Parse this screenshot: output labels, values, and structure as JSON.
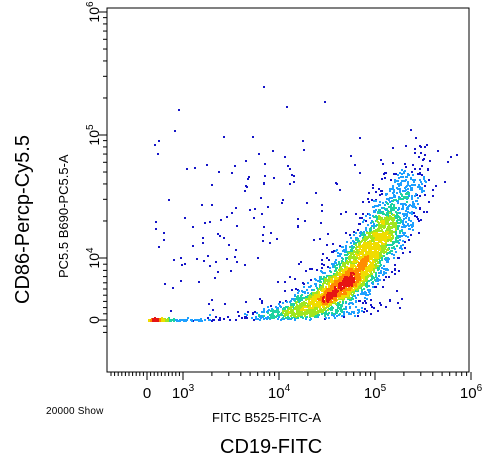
{
  "chart_data": {
    "type": "scatter",
    "style": "density-dot-plot",
    "xlabel": "FITC B525-FITC-A",
    "ylabel": "PC5.5 B690-PC5.5-A",
    "outer_xlabel": "CD19-FITC",
    "outer_ylabel": "CD86-Percp-Cy5.5",
    "event_count_text": "20000 Show",
    "x_ticks": [
      {
        "value": 0,
        "label": "0",
        "sup": ""
      },
      {
        "value": 1000,
        "label": "10",
        "sup": "3"
      },
      {
        "value": 10000,
        "label": "10",
        "sup": "4"
      },
      {
        "value": 100000,
        "label": "10",
        "sup": "5"
      },
      {
        "value": 1000000,
        "label": "10",
        "sup": "6"
      }
    ],
    "y_ticks": [
      {
        "value": 0,
        "label": "0",
        "sup": ""
      },
      {
        "value": 10000,
        "label": "10",
        "sup": "4"
      },
      {
        "value": 100000,
        "label": "10",
        "sup": "5"
      },
      {
        "value": 1000000,
        "label": "10",
        "sup": "6"
      }
    ],
    "xlim": [
      -1000,
      1000000
    ],
    "ylim": [
      -2000,
      1000000
    ],
    "x_scale": "biexponential",
    "y_scale": "biexponential",
    "grid": false,
    "legend": "none",
    "density_colors": [
      "#1414c8",
      "#1ea0ff",
      "#1ed2a0",
      "#a0e61e",
      "#f0dc00",
      "#ff8c00",
      "#e61414"
    ],
    "populations": [
      {
        "name": "",
        "center": [
          60000,
          8000
        ],
        "spread_log": [
          0.28,
          0.28
        ],
        "correlation": 0.85,
        "events": 2600
      },
      {
        "name": "",
        "center": [
          20000,
          1500
        ],
        "spread_log": [
          0.35,
          0.3
        ],
        "correlation": 0.5,
        "events": 500
      },
      {
        "name": "",
        "center": [
          150000,
          25000
        ],
        "spread_log": [
          0.2,
          0.25
        ],
        "correlation": 0.7,
        "events": 400
      },
      {
        "name": "",
        "center": [
          300,
          100
        ],
        "spread_log": [
          0.4,
          0.3
        ],
        "correlation": 0.3,
        "events": 250
      },
      {
        "name": "",
        "center": [
          5000,
          20000
        ],
        "spread_log": [
          0.6,
          0.45
        ],
        "correlation": 0.0,
        "events": 150
      }
    ]
  }
}
